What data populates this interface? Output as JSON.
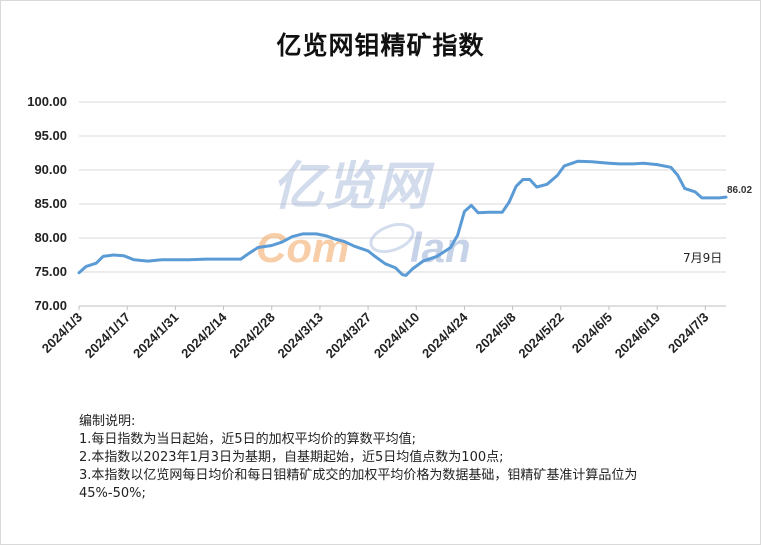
{
  "chart_data": {
    "type": "line",
    "title": "亿览网钼精矿指数",
    "xlabel": "",
    "ylabel": "",
    "ylim": [
      70,
      100
    ],
    "yticks": [
      "70.00",
      "75.00",
      "80.00",
      "85.00",
      "90.00",
      "95.00",
      "100.00"
    ],
    "xticks": [
      "2024/1/3",
      "2024/1/17",
      "2024/1/31",
      "2024/2/14",
      "2024/2/28",
      "2024/3/13",
      "2024/3/27",
      "2024/4/10",
      "2024/4/24",
      "2024/5/8",
      "2024/5/22",
      "2024/6/5",
      "2024/6/19",
      "2024/7/3"
    ],
    "x_range": [
      "2024/1/3",
      "2024/7/9"
    ],
    "grid": "horizontal",
    "legend": "none",
    "line_color": "#5b9bd5",
    "series": [
      {
        "values": [
          [
            "2024/1/3",
            74.9
          ],
          [
            "2024/1/5",
            75.8
          ],
          [
            "2024/1/8",
            76.3
          ],
          [
            "2024/1/10",
            77.3
          ],
          [
            "2024/1/13",
            77.5
          ],
          [
            "2024/1/16",
            77.4
          ],
          [
            "2024/1/19",
            76.8
          ],
          [
            "2024/1/23",
            76.6
          ],
          [
            "2024/1/27",
            76.8
          ],
          [
            "2024/1/31",
            76.8
          ],
          [
            "2024/2/4",
            76.8
          ],
          [
            "2024/2/9",
            76.9
          ],
          [
            "2024/2/14",
            76.9
          ],
          [
            "2024/2/19",
            76.9
          ],
          [
            "2024/2/21",
            77.6
          ],
          [
            "2024/2/24",
            78.6
          ],
          [
            "2024/2/28",
            78.9
          ],
          [
            "2024/3/2",
            79.4
          ],
          [
            "2024/3/5",
            80.2
          ],
          [
            "2024/3/8",
            80.6
          ],
          [
            "2024/3/12",
            80.6
          ],
          [
            "2024/3/15",
            80.3
          ],
          [
            "2024/3/17",
            79.9
          ],
          [
            "2024/3/20",
            79.5
          ],
          [
            "2024/3/23",
            78.8
          ],
          [
            "2024/3/27",
            78.1
          ],
          [
            "2024/3/29",
            77.3
          ],
          [
            "2024/4/1",
            76.2
          ],
          [
            "2024/4/4",
            75.6
          ],
          [
            "2024/4/6",
            74.6
          ],
          [
            "2024/4/7",
            74.5
          ],
          [
            "2024/4/9",
            75.5
          ],
          [
            "2024/4/12",
            76.6
          ],
          [
            "2024/4/16",
            77.3
          ],
          [
            "2024/4/20",
            78.6
          ],
          [
            "2024/4/22",
            80.4
          ],
          [
            "2024/4/24",
            83.9
          ],
          [
            "2024/4/26",
            84.8
          ],
          [
            "2024/4/28",
            83.7
          ],
          [
            "2024/5/1",
            83.8
          ],
          [
            "2024/5/5",
            83.8
          ],
          [
            "2024/5/7",
            85.3
          ],
          [
            "2024/5/9",
            87.6
          ],
          [
            "2024/5/11",
            88.6
          ],
          [
            "2024/5/13",
            88.6
          ],
          [
            "2024/5/15",
            87.5
          ],
          [
            "2024/5/18",
            87.9
          ],
          [
            "2024/5/21",
            89.2
          ],
          [
            "2024/5/23",
            90.6
          ],
          [
            "2024/5/27",
            91.3
          ],
          [
            "2024/5/31",
            91.2
          ],
          [
            "2024/6/5",
            91.0
          ],
          [
            "2024/6/8",
            90.9
          ],
          [
            "2024/6/12",
            90.9
          ],
          [
            "2024/6/15",
            91.0
          ],
          [
            "2024/6/19",
            90.8
          ],
          [
            "2024/6/23",
            90.4
          ],
          [
            "2024/6/25",
            89.2
          ],
          [
            "2024/6/27",
            87.3
          ],
          [
            "2024/6/30",
            86.8
          ],
          [
            "2024/7/2",
            85.9
          ],
          [
            "2024/7/5",
            85.9
          ],
          [
            "2024/7/7",
            85.9
          ],
          [
            "2024/7/9",
            86.02
          ]
        ]
      }
    ],
    "data_labels": [
      {
        "x": "2024/7/9",
        "text": "86.02"
      }
    ],
    "annotations": [
      "7月9日"
    ]
  },
  "watermark": {
    "line1": "亿览网",
    "line2_a": "Com",
    "line2_b": "lan"
  },
  "notes": {
    "heading": "编制说明:",
    "items": [
      "1.每日指数为当日起始，近5日的加权平均价的算数平均值;",
      "2.本指数以2023年1月3日为基期，自基期起始，近5日均值点数为100点;",
      "3.本指数以亿览网每日均价和每日钼精矿成交的加权平均价格为数据基础，钼精矿基准计算品位为45%-50%;"
    ]
  }
}
